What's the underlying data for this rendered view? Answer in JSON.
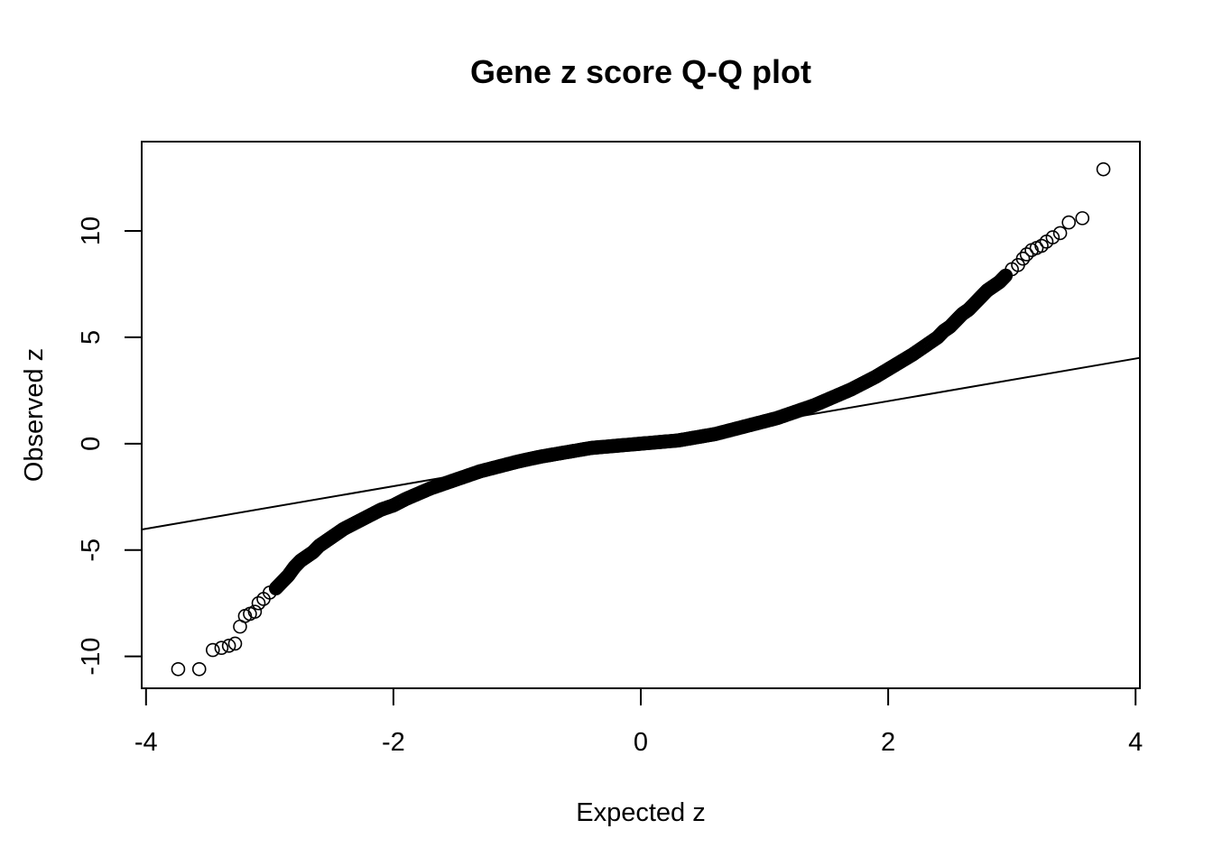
{
  "chart_data": {
    "type": "scatter",
    "title": "Gene z score Q-Q plot",
    "xlabel": "Expected z",
    "ylabel": "Observed z",
    "xlim": [
      -4,
      4
    ],
    "ylim": [
      -11.5,
      14.2
    ],
    "x_ticks": [
      -4,
      -2,
      0,
      2,
      4
    ],
    "x_tick_labels": [
      "-4",
      "-2",
      "0",
      "2",
      "4"
    ],
    "y_ticks": [
      -10,
      -5,
      0,
      5,
      10
    ],
    "y_tick_labels": [
      "-10",
      "-5",
      "0",
      "5",
      "10"
    ],
    "grid": false,
    "legend": false,
    "marker": "open-circle",
    "reference_line": {
      "intercept": 0,
      "slope": 1
    },
    "x": [
      -3.74,
      -3.57,
      -3.46,
      -3.39,
      -3.33,
      -3.28,
      -3.24,
      -3.2,
      -3.16,
      -3.12,
      -3.09,
      -3.05,
      -3.0,
      -2.95,
      -2.9,
      -2.85,
      -2.8,
      -2.75,
      -2.7,
      -2.65,
      -2.6,
      -2.55,
      -2.5,
      -2.45,
      -2.4,
      -2.3,
      -2.2,
      -2.1,
      -2.0,
      -1.9,
      -1.8,
      -1.7,
      -1.6,
      -1.5,
      -1.4,
      -1.3,
      -1.2,
      -1.1,
      -1.0,
      -0.9,
      -0.8,
      -0.7,
      -0.6,
      -0.5,
      -0.4,
      -0.3,
      -0.2,
      -0.1,
      0.0,
      0.1,
      0.2,
      0.3,
      0.4,
      0.5,
      0.6,
      0.7,
      0.8,
      0.9,
      1.0,
      1.1,
      1.2,
      1.3,
      1.4,
      1.5,
      1.6,
      1.7,
      1.8,
      1.9,
      2.0,
      2.1,
      2.2,
      2.3,
      2.4,
      2.45,
      2.5,
      2.55,
      2.6,
      2.65,
      2.7,
      2.75,
      2.8,
      2.85,
      2.9,
      2.95,
      3.0,
      3.05,
      3.09,
      3.12,
      3.16,
      3.2,
      3.24,
      3.28,
      3.33,
      3.39,
      3.46,
      3.57,
      3.74
    ],
    "y": [
      -10.6,
      -10.6,
      -9.7,
      -9.6,
      -9.5,
      -9.4,
      -8.6,
      -8.1,
      -8.0,
      -7.9,
      -7.5,
      -7.3,
      -7.0,
      -6.8,
      -6.5,
      -6.2,
      -5.8,
      -5.5,
      -5.3,
      -5.1,
      -4.8,
      -4.6,
      -4.4,
      -4.2,
      -4.0,
      -3.7,
      -3.4,
      -3.1,
      -2.9,
      -2.6,
      -2.35,
      -2.1,
      -1.9,
      -1.7,
      -1.5,
      -1.3,
      -1.15,
      -1.0,
      -0.85,
      -0.72,
      -0.6,
      -0.5,
      -0.4,
      -0.3,
      -0.2,
      -0.15,
      -0.1,
      -0.05,
      0.0,
      0.05,
      0.1,
      0.15,
      0.25,
      0.35,
      0.45,
      0.6,
      0.75,
      0.9,
      1.05,
      1.2,
      1.4,
      1.6,
      1.8,
      2.05,
      2.3,
      2.55,
      2.85,
      3.15,
      3.5,
      3.85,
      4.2,
      4.6,
      5.0,
      5.3,
      5.5,
      5.8,
      6.1,
      6.3,
      6.6,
      6.9,
      7.2,
      7.4,
      7.6,
      7.9,
      8.2,
      8.4,
      8.7,
      8.9,
      9.1,
      9.2,
      9.3,
      9.5,
      9.7,
      9.9,
      10.4,
      10.6,
      12.9
    ]
  }
}
